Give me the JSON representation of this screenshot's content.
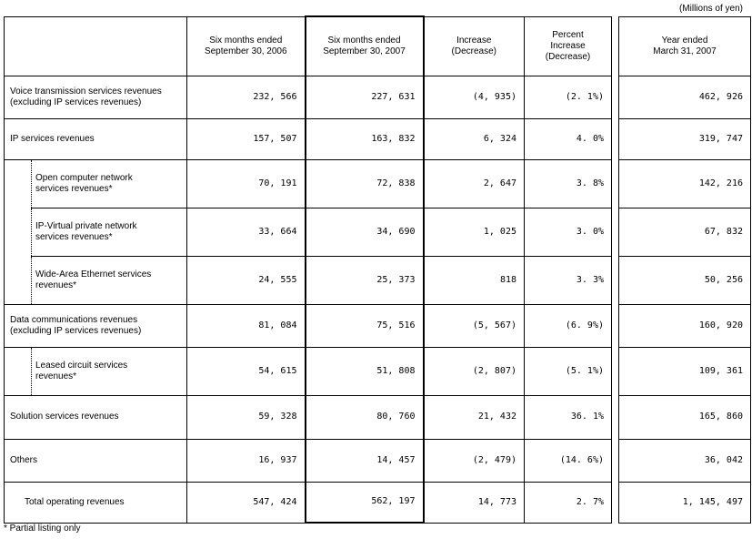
{
  "unit_label": "(Millions of yen)",
  "footnote": "* Partial listing only",
  "headers": {
    "h1": "Six months ended\nSeptember 30, 2006",
    "h2": "Six months ended\nSeptember 30, 2007",
    "h3": "Increase\n(Decrease)",
    "h4": "Percent\nIncrease\n(Decrease)",
    "h5": "Year ended\nMarch 31, 2007"
  },
  "rows": [
    {
      "label": "Voice transmission services revenues\n(excluding IP services revenues)",
      "c1": "232, 566",
      "c2": "227, 631",
      "c3": "(4, 935)",
      "c4": "(2. 1%)",
      "c5": "462, 926"
    },
    {
      "label": "IP services revenues",
      "c1": "157, 507",
      "c2": "163, 832",
      "c3": "6, 324",
      "c4": "4. 0%",
      "c5": "319, 747"
    },
    {
      "label": "Open computer network\nservices revenues*",
      "c1": "70, 191",
      "c2": "72, 838",
      "c3": "2, 647",
      "c4": "3. 8%",
      "c5": "142, 216"
    },
    {
      "label": "IP-Virtual private network\nservices revenues*",
      "c1": "33, 664",
      "c2": "34, 690",
      "c3": "1, 025",
      "c4": "3. 0%",
      "c5": "67, 832"
    },
    {
      "label": "Wide-Area Ethernet services\nrevenues*",
      "c1": "24, 555",
      "c2": "25, 373",
      "c3": "818",
      "c4": "3. 3%",
      "c5": "50, 256"
    },
    {
      "label": "Data communications revenues\n(excluding IP services revenues)",
      "c1": "81, 084",
      "c2": "75, 516",
      "c3": "(5, 567)",
      "c4": "(6. 9%)",
      "c5": "160, 920"
    },
    {
      "label": "Leased circuit services\nrevenues*",
      "c1": "54, 615",
      "c2": "51, 808",
      "c3": "(2, 807)",
      "c4": "(5. 1%)",
      "c5": "109, 361"
    },
    {
      "label": "Solution services revenues",
      "c1": "59, 328",
      "c2": "80, 760",
      "c3": "21, 432",
      "c4": "36. 1%",
      "c5": "165, 860"
    },
    {
      "label": "Others",
      "c1": "16, 937",
      "c2": "14, 457",
      "c3": "(2, 479)",
      "c4": "(14. 6%)",
      "c5": "36, 042"
    },
    {
      "label": "Total operating revenues",
      "c1": "547, 424",
      "c2": "562, 197",
      "c3": "14, 773",
      "c4": "2. 7%",
      "c5": "1, 145, 497"
    }
  ]
}
